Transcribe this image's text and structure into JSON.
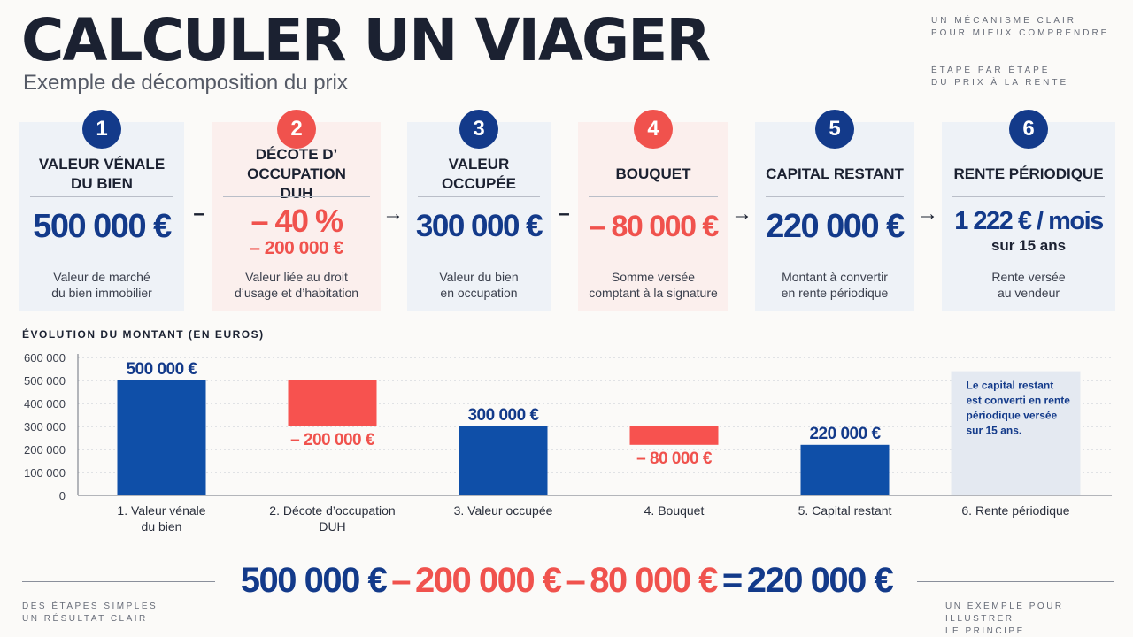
{
  "header": {
    "title": "CALCULER UN VIAGER",
    "subtitle": "Exemple de décomposition du prix",
    "note_top_1": "UN MÉCANISME CLAIR\nPOUR MIEUX COMPRENDRE",
    "note_top_2": "ÉTAPE PAR ÉTAPE\nDU PRIX À LA RENTE"
  },
  "steps": [
    {
      "number": "1",
      "title": "VALEUR VÉNALE\nDU BIEN",
      "value": "500 000 €",
      "subvalue": "",
      "description": "Valeur de marché\ndu bien immobilier"
    },
    {
      "number": "2",
      "title": "DÉCOTE D’ OCCUPATION\nDUH",
      "value": "– 40 %",
      "subvalue": "– 200 000 €",
      "description": "Valeur liée au droit\nd’usage et d’habitation"
    },
    {
      "number": "3",
      "title": "VALEUR OCCUPÉE",
      "value": "300 000 €",
      "subvalue": "",
      "description": "Valeur du bien\nen occupation"
    },
    {
      "number": "4",
      "title": "BOUQUET",
      "value": "– 80 000 €",
      "subvalue": "",
      "description": "Somme versée\ncomptant à la signature"
    },
    {
      "number": "5",
      "title": "CAPITAL RESTANT",
      "value": "220 000 €",
      "subvalue": "",
      "description": "Montant à convertir\nen rente périodique"
    },
    {
      "number": "6",
      "title": "RENTE PÉRIODIQUE",
      "value": "1 222 € / mois",
      "subvalue": "sur 15 ans",
      "description": "Rente versée\nau vendeur"
    }
  ],
  "operators": [
    "–",
    "→",
    "–",
    "→",
    "→"
  ],
  "chart_data": {
    "type": "bar",
    "title": "ÉVOLUTION DU MONTANT (EN EUROS)",
    "categories": [
      "1. Valeur vénale\ndu bien",
      "2. Décote d’occupation\nDUH",
      "3. Valeur occupée",
      "4. Bouquet",
      "5. Capital restant",
      "6. Rente périodique"
    ],
    "bars": [
      {
        "kind": "total",
        "start": 0,
        "end": 500000,
        "label": "500 000 €"
      },
      {
        "kind": "decrease",
        "start": 500000,
        "end": 300000,
        "label": "– 200 000 €"
      },
      {
        "kind": "total",
        "start": 0,
        "end": 300000,
        "label": "300 000 €"
      },
      {
        "kind": "decrease",
        "start": 300000,
        "end": 220000,
        "label": "– 80 000 €"
      },
      {
        "kind": "total",
        "start": 0,
        "end": 220000,
        "label": "220 000 €"
      },
      {
        "kind": "note",
        "label": "Le capital restant\nest converti en rente\npériodique versée\nsur 15 ans."
      }
    ],
    "yticks": [
      0,
      100000,
      200000,
      300000,
      400000,
      500000,
      600000
    ],
    "ytick_labels": [
      "0",
      "100 000",
      "200 000",
      "300 000",
      "400 000",
      "500 000",
      "600 000"
    ],
    "ylim": [
      0,
      600000
    ],
    "grid": true,
    "colors": {
      "total": "#0f4fa8",
      "decrease": "#f7524f",
      "note": "#e4e9f1"
    }
  },
  "equation": [
    {
      "text": "500 000 €",
      "color": "navy"
    },
    {
      "text": "–",
      "color": "red"
    },
    {
      "text": "200 000 €",
      "color": "red"
    },
    {
      "text": "–",
      "color": "red"
    },
    {
      "text": "80 000 €",
      "color": "red"
    },
    {
      "text": "=",
      "color": "navy"
    },
    {
      "text": "220 000 €",
      "color": "navy"
    }
  ],
  "footer": {
    "left_note": "DES ÉTAPES SIMPLES\nUN RÉSULTAT CLAIR",
    "right_note": "UN EXEMPLE POUR ILLUSTRER\nLE PRINCIPE"
  }
}
